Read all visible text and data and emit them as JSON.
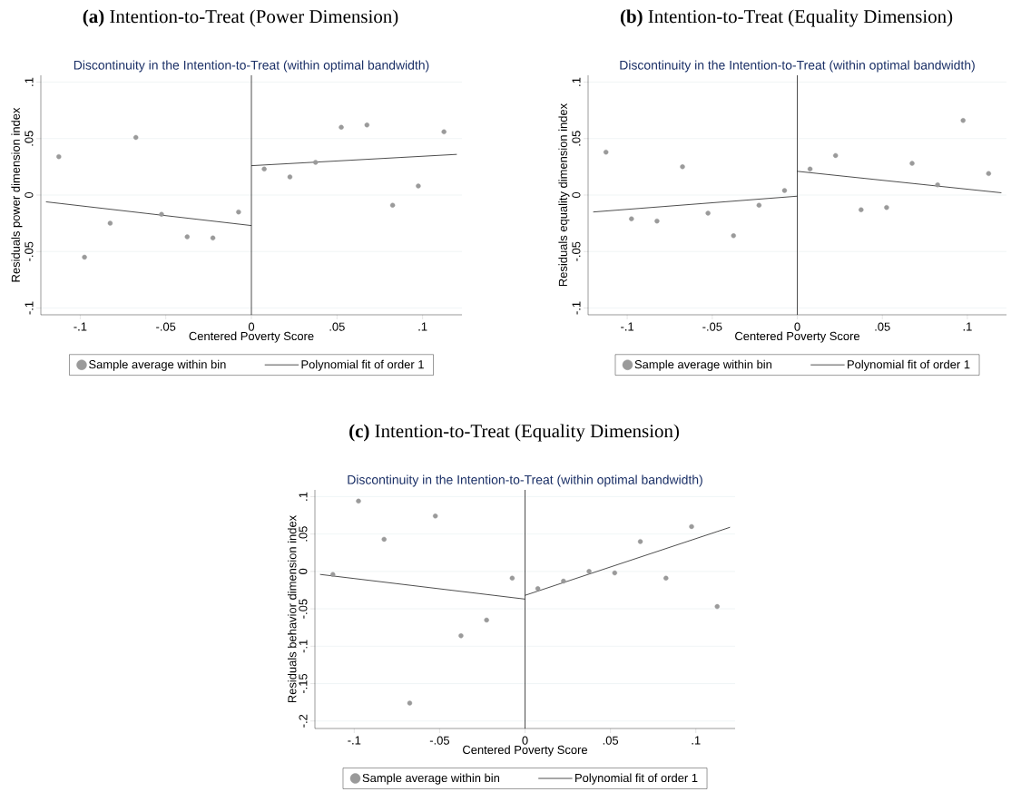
{
  "chart_data": [
    {
      "type": "scatter",
      "title": "**(a)** Intention-to-Treat (Power Dimension)",
      "subtitle": "Discontinuity in the Intention-to-Treat (within optimal bandwidth)",
      "xlabel": "Centered Poverty Score",
      "ylabel": "Residuals power dimension index",
      "x": [
        -0.1125,
        -0.0975,
        -0.0825,
        -0.0675,
        -0.0525,
        -0.0375,
        -0.0225,
        -0.0075,
        0.0075,
        0.0225,
        0.0375,
        0.0525,
        0.0675,
        0.0825,
        0.0975,
        0.1125
      ],
      "series": [
        {
          "name": "Sample average within bin",
          "color": "#9a9a9a",
          "marker": "circle",
          "values": [
            0.034,
            -0.055,
            -0.025,
            0.051,
            -0.017,
            -0.037,
            -0.038,
            -0.015,
            0.023,
            0.016,
            0.029,
            0.06,
            0.062,
            -0.009,
            0.008,
            0.056
          ]
        },
        {
          "name": "Polynomial fit of order 1",
          "type": "line",
          "color": "#000000",
          "x": [
            -0.12,
            0
          ],
          "values": [
            -0.006,
            -0.027
          ]
        },
        {
          "type": "line",
          "color": "#000000",
          "x": [
            0,
            0.12
          ],
          "values": [
            0.026,
            0.036
          ]
        }
      ],
      "xlim": [
        -0.123,
        0.123
      ],
      "ylim": [
        -0.106,
        0.106
      ],
      "xticks": [
        {
          "value": -0.1,
          "label": "-.1"
        },
        {
          "value": -0.05,
          "label": "-.05"
        },
        0,
        {
          "value": 0.05,
          "label": ".05"
        },
        {
          "value": 0.1,
          "label": ".1"
        }
      ],
      "yticks": [
        {
          "value": -0.1,
          "label": "-.1"
        },
        {
          "value": -0.05,
          "label": "-.05"
        },
        0,
        {
          "value": 0.05,
          "label": ".05"
        },
        {
          "value": 0.1,
          "label": ".1"
        }
      ],
      "ref_lines": [
        {
          "axis": "x",
          "value": 0,
          "color": "#000000"
        }
      ],
      "grid": "y",
      "legend": "bottom"
    },
    {
      "type": "scatter",
      "title": "**(b)** Intention-to-Treat (Equality Dimension)",
      "subtitle": "Discontinuity in the Intention-to-Treat (within optimal bandwidth)",
      "xlabel": "Centered Poverty Score",
      "ylabel": "Residuals equality dimension index",
      "x": [
        -0.1125,
        -0.0975,
        -0.0825,
        -0.0675,
        -0.0525,
        -0.0375,
        -0.0225,
        -0.0075,
        0.0075,
        0.0225,
        0.0375,
        0.0525,
        0.0675,
        0.0825,
        0.0975,
        0.1125
      ],
      "series": [
        {
          "name": "Sample average within bin",
          "color": "#9a9a9a",
          "marker": "circle",
          "values": [
            0.038,
            -0.021,
            -0.023,
            0.025,
            -0.016,
            -0.036,
            -0.009,
            0.004,
            0.023,
            0.035,
            -0.013,
            -0.011,
            0.028,
            0.009,
            0.066,
            0.019
          ]
        },
        {
          "name": "Polynomial fit of order 1",
          "type": "line",
          "color": "#000000",
          "x": [
            -0.12,
            0
          ],
          "values": [
            -0.015,
            -0.001
          ]
        },
        {
          "type": "line",
          "color": "#000000",
          "x": [
            0,
            0.12
          ],
          "values": [
            0.021,
            0.002
          ]
        }
      ],
      "xlim": [
        -0.123,
        0.123
      ],
      "ylim": [
        -0.106,
        0.106
      ],
      "xticks": [
        {
          "value": -0.1,
          "label": "-.1"
        },
        {
          "value": -0.05,
          "label": "-.05"
        },
        0,
        {
          "value": 0.05,
          "label": ".05"
        },
        {
          "value": 0.1,
          "label": ".1"
        }
      ],
      "yticks": [
        {
          "value": -0.1,
          "label": "-.1"
        },
        {
          "value": -0.05,
          "label": "-.05"
        },
        0,
        {
          "value": 0.05,
          "label": ".05"
        },
        {
          "value": 0.1,
          "label": ".1"
        }
      ],
      "ref_lines": [
        {
          "axis": "x",
          "value": 0,
          "color": "#000000"
        }
      ],
      "grid": "y",
      "legend": "bottom"
    },
    {
      "type": "scatter",
      "title": "**(c)** Intention-to-Treat (Equality Dimension)",
      "subtitle": "Discontinuity in the Intention-to-Treat (within optimal bandwidth)",
      "xlabel": "Centered Poverty Score",
      "ylabel": "Residuals behavior dimension index",
      "x": [
        -0.1125,
        -0.0975,
        -0.0825,
        -0.0675,
        -0.0525,
        -0.0375,
        -0.0225,
        -0.0075,
        0.0075,
        0.0225,
        0.0375,
        0.0525,
        0.0675,
        0.0825,
        0.0975,
        0.1125
      ],
      "series": [
        {
          "name": "Sample average within bin",
          "color": "#9a9a9a",
          "marker": "circle",
          "values": [
            -0.004,
            0.094,
            0.043,
            -0.176,
            0.074,
            -0.086,
            -0.065,
            -0.009,
            -0.023,
            -0.013,
            0.0,
            -0.002,
            0.04,
            -0.009,
            0.06,
            -0.047
          ]
        },
        {
          "name": "Polynomial fit of order 1",
          "type": "line",
          "color": "#000000",
          "x": [
            -0.12,
            0
          ],
          "values": [
            -0.004,
            -0.037
          ]
        },
        {
          "type": "line",
          "color": "#000000",
          "x": [
            0,
            0.12
          ],
          "values": [
            -0.032,
            0.059
          ]
        }
      ],
      "xlim": [
        -0.123,
        0.123
      ],
      "ylim": [
        -0.21,
        0.109
      ],
      "xticks": [
        {
          "value": -0.1,
          "label": "-.1"
        },
        {
          "value": -0.05,
          "label": "-.05"
        },
        0,
        {
          "value": 0.05,
          "label": ".05"
        },
        {
          "value": 0.1,
          "label": ".1"
        }
      ],
      "yticks": [
        {
          "value": -0.2,
          "label": "-.2"
        },
        {
          "value": -0.15,
          "label": "-.15"
        },
        {
          "value": -0.1,
          "label": "-.1"
        },
        {
          "value": -0.05,
          "label": "-.05"
        },
        0,
        {
          "value": 0.05,
          "label": ".05"
        },
        {
          "value": 0.1,
          "label": ".1"
        }
      ],
      "ref_lines": [
        {
          "axis": "x",
          "value": 0,
          "color": "#000000"
        }
      ],
      "grid": "y",
      "legend": "bottom"
    }
  ]
}
